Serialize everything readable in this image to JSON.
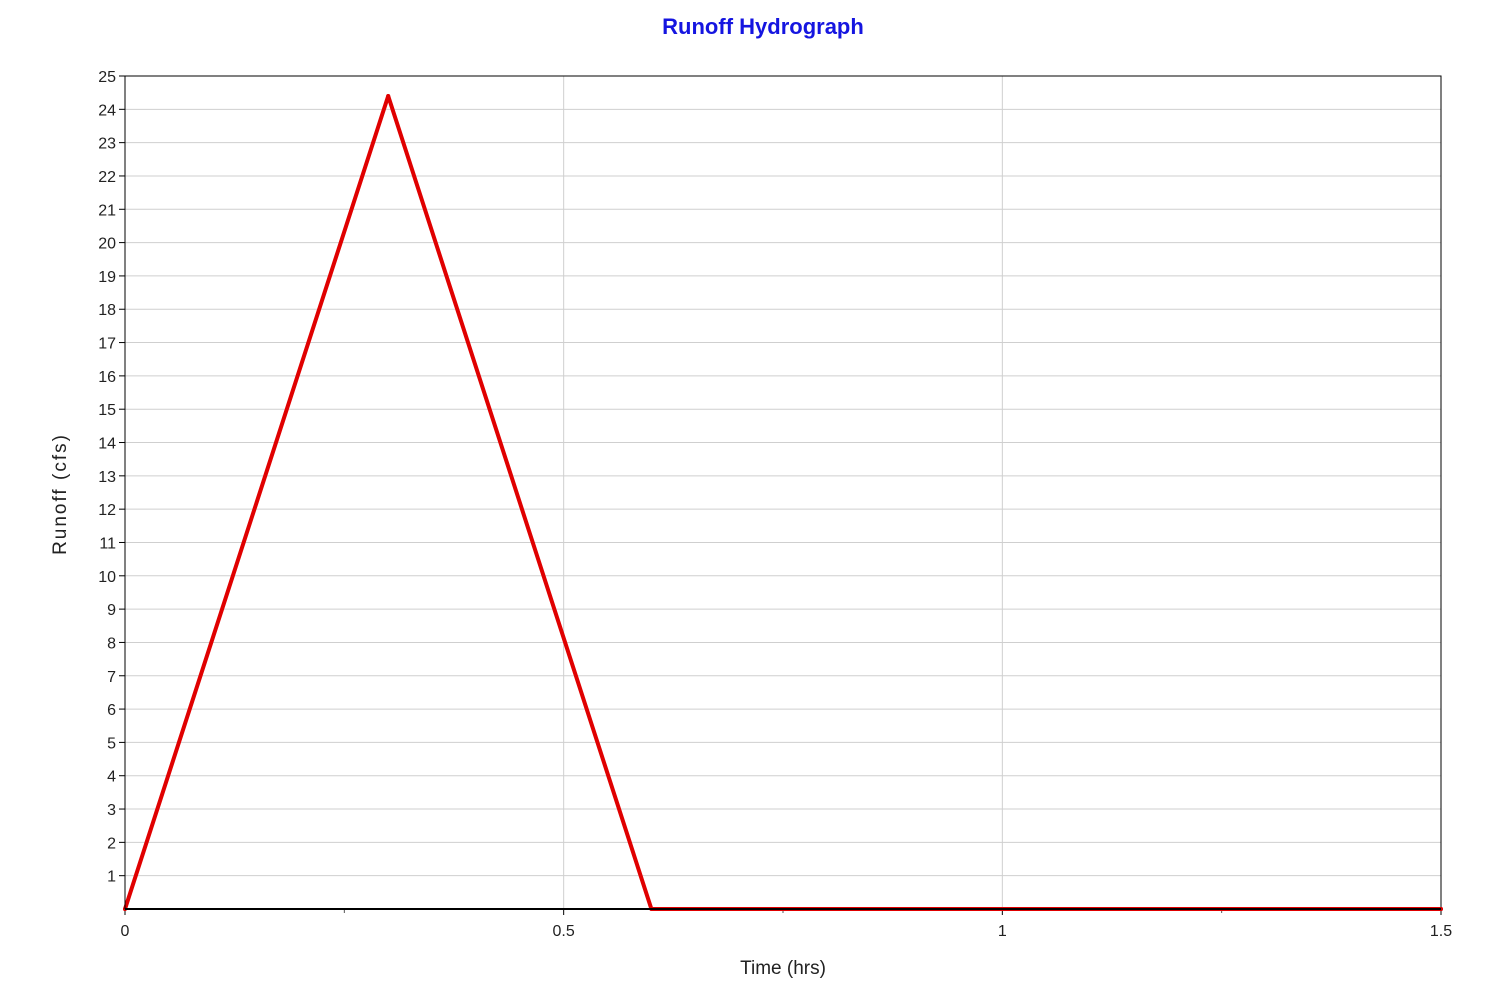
{
  "chart_data": {
    "type": "line",
    "title": "Runoff Hydrograph",
    "xlabel": "Time (hrs)",
    "ylabel": "Runoff (cfs)",
    "xlim": [
      0,
      1.5
    ],
    "ylim": [
      0,
      25
    ],
    "x_ticks": [
      {
        "value": 0,
        "label": "0"
      },
      {
        "value": 0.5,
        "label": "0.5"
      },
      {
        "value": 1,
        "label": "1"
      },
      {
        "value": 1.5,
        "label": "1.5"
      }
    ],
    "x_minor_ticks": [
      0.25,
      0.75,
      1.25
    ],
    "y_ticks": [
      {
        "value": 1,
        "label": "1"
      },
      {
        "value": 2,
        "label": "2"
      },
      {
        "value": 3,
        "label": "3"
      },
      {
        "value": 4,
        "label": "4"
      },
      {
        "value": 5,
        "label": "5"
      },
      {
        "value": 6,
        "label": "6"
      },
      {
        "value": 7,
        "label": "7"
      },
      {
        "value": 8,
        "label": "8"
      },
      {
        "value": 9,
        "label": "9"
      },
      {
        "value": 10,
        "label": "10"
      },
      {
        "value": 11,
        "label": "11"
      },
      {
        "value": 12,
        "label": "12"
      },
      {
        "value": 13,
        "label": "13"
      },
      {
        "value": 14,
        "label": "14"
      },
      {
        "value": 15,
        "label": "15"
      },
      {
        "value": 16,
        "label": "16"
      },
      {
        "value": 17,
        "label": "17"
      },
      {
        "value": 18,
        "label": "18"
      },
      {
        "value": 19,
        "label": "19"
      },
      {
        "value": 20,
        "label": "20"
      },
      {
        "value": 21,
        "label": "21"
      },
      {
        "value": 22,
        "label": "22"
      },
      {
        "value": 23,
        "label": "23"
      },
      {
        "value": 24,
        "label": "24"
      },
      {
        "value": 25,
        "label": "25"
      }
    ],
    "grid": true,
    "legend": "none",
    "series": [
      {
        "color": "#e00000",
        "x": [
          0,
          0.3,
          0.6,
          1.5
        ],
        "y": [
          0,
          24.4,
          0,
          0
        ]
      }
    ],
    "colors": {
      "title": "#1515e0",
      "grid": "#cfcfcf",
      "axis": "#000000",
      "series": "#e00000"
    }
  }
}
